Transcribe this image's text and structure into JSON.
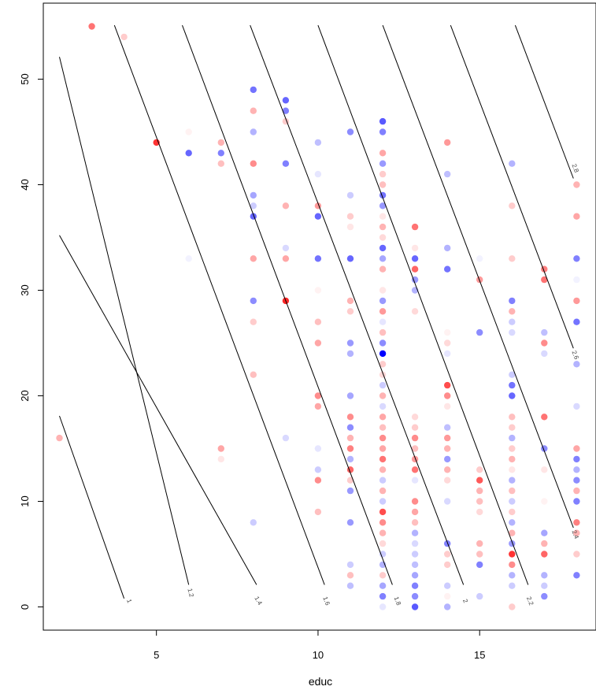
{
  "chart_data": {
    "type": "scatter",
    "title": "",
    "xlabel": "educ",
    "ylabel": "",
    "xlim": [
      1.5,
      18.6
    ],
    "ylim": [
      -2.2,
      57.2
    ],
    "x_ticks": [
      5,
      10,
      15
    ],
    "x_tick_labels": [
      "5",
      "10",
      "15"
    ],
    "y_ticks": [
      0,
      10,
      20,
      30,
      40,
      50
    ],
    "y_tick_labels": [
      "0",
      "10",
      "20",
      "30",
      "40",
      "50"
    ],
    "grid": false,
    "legend": "none",
    "colors": {
      "positive": "#ff0000",
      "negative": "#0000ff",
      "contour": "#000000",
      "frame": "#000000"
    },
    "contour_lines": [
      {
        "label": "1",
        "from": [
          2.0,
          18.1
        ],
        "to": [
          4.0,
          0.8
        ],
        "label_at": [
          4.1,
          0.5
        ]
      },
      {
        "label": "1.2",
        "from": [
          2.0,
          52.1
        ],
        "to": [
          6.0,
          2.1
        ],
        "label_at": [
          6.0,
          1.3
        ]
      },
      {
        "label": "1.4",
        "from": [
          2.0,
          35.2
        ],
        "to": [
          8.1,
          2.1
        ],
        "label_at": [
          8.1,
          0.5
        ]
      },
      {
        "label": "1.6",
        "from": [
          3.7,
          55.1
        ],
        "to": [
          10.2,
          2.1
        ],
        "label_at": [
          10.2,
          0.5
        ]
      },
      {
        "label": "1.8",
        "from": [
          5.8,
          55.1
        ],
        "to": [
          12.3,
          2.1
        ],
        "label_at": [
          12.4,
          0.5
        ]
      },
      {
        "label": "2",
        "from": [
          7.9,
          55.1
        ],
        "to": [
          14.5,
          2.1
        ],
        "label_at": [
          14.5,
          0.5
        ]
      },
      {
        "label": "2.2",
        "from": [
          10.0,
          55.1
        ],
        "to": [
          16.5,
          2.1
        ],
        "label_at": [
          16.5,
          0.5
        ]
      },
      {
        "label": "2.4",
        "from": [
          12.0,
          55.1
        ],
        "to": [
          17.9,
          7.5
        ],
        "label_at": [
          17.9,
          6.8
        ]
      },
      {
        "label": "2.6",
        "from": [
          14.1,
          55.1
        ],
        "to": [
          17.9,
          24.5
        ],
        "label_at": [
          17.9,
          23.8
        ]
      },
      {
        "label": "2.8",
        "from": [
          16.1,
          55.1
        ],
        "to": [
          17.9,
          40.6
        ],
        "label_at": [
          17.9,
          41.5
        ]
      }
    ],
    "points": [
      {
        "x": 3,
        "y": 55,
        "r": 0.55
      },
      {
        "x": 4,
        "y": 54,
        "r": 0.2
      },
      {
        "x": 2,
        "y": 16,
        "r": 0.3
      },
      {
        "x": 5,
        "y": 44,
        "r": 0.8
      },
      {
        "x": 6,
        "y": 45,
        "r": 0.05
      },
      {
        "x": 6,
        "y": 43,
        "r": -0.6
      },
      {
        "x": 6,
        "y": 33,
        "r": -0.05
      },
      {
        "x": 7,
        "y": 44,
        "r": 0.3
      },
      {
        "x": 7,
        "y": 43,
        "r": -0.5
      },
      {
        "x": 7,
        "y": 42,
        "r": 0.25
      },
      {
        "x": 7,
        "y": 15,
        "r": 0.35
      },
      {
        "x": 7,
        "y": 14,
        "r": 0.1
      },
      {
        "x": 8,
        "y": 49,
        "r": -0.55
      },
      {
        "x": 8,
        "y": 47,
        "r": 0.3
      },
      {
        "x": 8,
        "y": 45,
        "r": -0.3
      },
      {
        "x": 8,
        "y": 42,
        "r": 0.45
      },
      {
        "x": 8,
        "y": 39,
        "r": -0.35
      },
      {
        "x": 8,
        "y": 38,
        "r": -0.2
      },
      {
        "x": 8,
        "y": 37,
        "r": -0.6
      },
      {
        "x": 8,
        "y": 33,
        "r": 0.35
      },
      {
        "x": 8,
        "y": 29,
        "r": -0.45
      },
      {
        "x": 8,
        "y": 27,
        "r": 0.2
      },
      {
        "x": 8,
        "y": 22,
        "r": 0.25
      },
      {
        "x": 8,
        "y": 8,
        "r": -0.2
      },
      {
        "x": 9,
        "y": 48,
        "r": -0.6
      },
      {
        "x": 9,
        "y": 47,
        "r": -0.5
      },
      {
        "x": 9,
        "y": 46,
        "r": 0.2
      },
      {
        "x": 9,
        "y": 42,
        "r": -0.5
      },
      {
        "x": 9,
        "y": 38,
        "r": 0.3
      },
      {
        "x": 9,
        "y": 34,
        "r": -0.15
      },
      {
        "x": 9,
        "y": 33,
        "r": 0.35
      },
      {
        "x": 9,
        "y": 29,
        "r": 0.85
      },
      {
        "x": 9,
        "y": 16,
        "r": -0.15
      },
      {
        "x": 10,
        "y": 44,
        "r": -0.25
      },
      {
        "x": 10,
        "y": 41,
        "r": -0.1
      },
      {
        "x": 10,
        "y": 38,
        "r": 0.4
      },
      {
        "x": 10,
        "y": 37,
        "r": -0.6
      },
      {
        "x": 10,
        "y": 33,
        "r": -0.55
      },
      {
        "x": 10,
        "y": 30,
        "r": 0.05
      },
      {
        "x": 10,
        "y": 27,
        "r": 0.25
      },
      {
        "x": 10,
        "y": 25,
        "r": 0.35
      },
      {
        "x": 10,
        "y": 20,
        "r": 0.45
      },
      {
        "x": 10,
        "y": 19,
        "r": 0.35
      },
      {
        "x": 10,
        "y": 15,
        "r": -0.1
      },
      {
        "x": 10,
        "y": 13,
        "r": -0.2
      },
      {
        "x": 10,
        "y": 12,
        "r": 0.45
      },
      {
        "x": 10,
        "y": 9,
        "r": 0.25
      },
      {
        "x": 11,
        "y": 45,
        "r": -0.45
      },
      {
        "x": 11,
        "y": 39,
        "r": -0.2
      },
      {
        "x": 11,
        "y": 37,
        "r": 0.2
      },
      {
        "x": 11,
        "y": 36,
        "r": 0.1
      },
      {
        "x": 11,
        "y": 33,
        "r": -0.6
      },
      {
        "x": 11,
        "y": 29,
        "r": 0.3
      },
      {
        "x": 11,
        "y": 28,
        "r": 0.2
      },
      {
        "x": 11,
        "y": 25,
        "r": -0.4
      },
      {
        "x": 11,
        "y": 24,
        "r": -0.3
      },
      {
        "x": 11,
        "y": 20,
        "r": -0.35
      },
      {
        "x": 11,
        "y": 18,
        "r": 0.45
      },
      {
        "x": 11,
        "y": 17,
        "r": -0.45
      },
      {
        "x": 11,
        "y": 16,
        "r": 0.3
      },
      {
        "x": 11,
        "y": 15,
        "r": 0.5
      },
      {
        "x": 11,
        "y": 14,
        "r": -0.3
      },
      {
        "x": 11,
        "y": 13,
        "r": 0.6
      },
      {
        "x": 11,
        "y": 12,
        "r": 0.2
      },
      {
        "x": 11,
        "y": 11,
        "r": -0.4
      },
      {
        "x": 11,
        "y": 8,
        "r": -0.4
      },
      {
        "x": 11,
        "y": 4,
        "r": -0.2
      },
      {
        "x": 11,
        "y": 3,
        "r": 0.25
      },
      {
        "x": 11,
        "y": 2,
        "r": -0.25
      },
      {
        "x": 12,
        "y": 46,
        "r": -0.65
      },
      {
        "x": 12,
        "y": 45,
        "r": -0.5
      },
      {
        "x": 12,
        "y": 43,
        "r": 0.35
      },
      {
        "x": 12,
        "y": 42,
        "r": -0.4
      },
      {
        "x": 12,
        "y": 41,
        "r": 0.2
      },
      {
        "x": 12,
        "y": 40,
        "r": 0.25
      },
      {
        "x": 12,
        "y": 39,
        "r": -0.55
      },
      {
        "x": 12,
        "y": 38,
        "r": -0.4
      },
      {
        "x": 12,
        "y": 37,
        "r": 0.1
      },
      {
        "x": 12,
        "y": 36,
        "r": 0.3
      },
      {
        "x": 12,
        "y": 35,
        "r": 0.15
      },
      {
        "x": 12,
        "y": 34,
        "r": -0.6
      },
      {
        "x": 12,
        "y": 33,
        "r": -0.35
      },
      {
        "x": 12,
        "y": 32,
        "r": 0.3
      },
      {
        "x": 12,
        "y": 30,
        "r": 0.1
      },
      {
        "x": 12,
        "y": 29,
        "r": -0.4
      },
      {
        "x": 12,
        "y": 28,
        "r": 0.4
      },
      {
        "x": 12,
        "y": 27,
        "r": -0.1
      },
      {
        "x": 12,
        "y": 26,
        "r": 0.25
      },
      {
        "x": 12,
        "y": 25,
        "r": -0.45
      },
      {
        "x": 12,
        "y": 24,
        "r": -1.0
      },
      {
        "x": 12,
        "y": 23,
        "r": 0.2
      },
      {
        "x": 12,
        "y": 22,
        "r": 0.15
      },
      {
        "x": 12,
        "y": 21,
        "r": -0.2
      },
      {
        "x": 12,
        "y": 20,
        "r": 0.3
      },
      {
        "x": 12,
        "y": 19,
        "r": -0.15
      },
      {
        "x": 12,
        "y": 18,
        "r": 0.35
      },
      {
        "x": 12,
        "y": 17,
        "r": 0.25
      },
      {
        "x": 12,
        "y": 16,
        "r": 0.45
      },
      {
        "x": 12,
        "y": 15,
        "r": 0.35
      },
      {
        "x": 12,
        "y": 14,
        "r": 0.55
      },
      {
        "x": 12,
        "y": 13,
        "r": 0.3
      },
      {
        "x": 12,
        "y": 12,
        "r": -0.2
      },
      {
        "x": 12,
        "y": 11,
        "r": 0.3
      },
      {
        "x": 12,
        "y": 10,
        "r": -0.2
      },
      {
        "x": 12,
        "y": 9,
        "r": 0.7
      },
      {
        "x": 12,
        "y": 8,
        "r": 0.45
      },
      {
        "x": 12,
        "y": 7,
        "r": 0.3
      },
      {
        "x": 12,
        "y": 6,
        "r": 0.15
      },
      {
        "x": 12,
        "y": 5,
        "r": -0.2
      },
      {
        "x": 12,
        "y": 4,
        "r": -0.3
      },
      {
        "x": 12,
        "y": 3,
        "r": 0.2
      },
      {
        "x": 12,
        "y": 2,
        "r": -0.35
      },
      {
        "x": 12,
        "y": 1,
        "r": -0.5
      },
      {
        "x": 12,
        "y": 0,
        "r": -0.1
      },
      {
        "x": 13,
        "y": 36,
        "r": 0.55
      },
      {
        "x": 13,
        "y": 34,
        "r": 0.1
      },
      {
        "x": 13,
        "y": 33,
        "r": -0.6
      },
      {
        "x": 13,
        "y": 32,
        "r": 0.6
      },
      {
        "x": 13,
        "y": 31,
        "r": -0.4
      },
      {
        "x": 13,
        "y": 30,
        "r": -0.3
      },
      {
        "x": 13,
        "y": 28,
        "r": 0.15
      },
      {
        "x": 13,
        "y": 18,
        "r": 0.15
      },
      {
        "x": 13,
        "y": 17,
        "r": 0.2
      },
      {
        "x": 13,
        "y": 16,
        "r": 0.45
      },
      {
        "x": 13,
        "y": 15,
        "r": 0.25
      },
      {
        "x": 13,
        "y": 14,
        "r": 0.4
      },
      {
        "x": 13,
        "y": 13,
        "r": 0.55
      },
      {
        "x": 13,
        "y": 12,
        "r": -0.1
      },
      {
        "x": 13,
        "y": 10,
        "r": 0.45
      },
      {
        "x": 13,
        "y": 9,
        "r": 0.35
      },
      {
        "x": 13,
        "y": 8,
        "r": 0.25
      },
      {
        "x": 13,
        "y": 7,
        "r": -0.3
      },
      {
        "x": 13,
        "y": 6,
        "r": -0.15
      },
      {
        "x": 13,
        "y": 5,
        "r": -0.2
      },
      {
        "x": 13,
        "y": 4,
        "r": -0.25
      },
      {
        "x": 13,
        "y": 3,
        "r": -0.35
      },
      {
        "x": 13,
        "y": 2,
        "r": -0.5
      },
      {
        "x": 13,
        "y": 1,
        "r": -0.45
      },
      {
        "x": 13,
        "y": 0,
        "r": -0.65
      },
      {
        "x": 14,
        "y": 44,
        "r": 0.4
      },
      {
        "x": 14,
        "y": 41,
        "r": -0.25
      },
      {
        "x": 14,
        "y": 34,
        "r": -0.3
      },
      {
        "x": 14,
        "y": 32,
        "r": -0.55
      },
      {
        "x": 14,
        "y": 26,
        "r": 0.05
      },
      {
        "x": 14,
        "y": 25,
        "r": 0.15
      },
      {
        "x": 14,
        "y": 24,
        "r": -0.1
      },
      {
        "x": 14,
        "y": 21,
        "r": 0.7
      },
      {
        "x": 14,
        "y": 20,
        "r": 0.45
      },
      {
        "x": 14,
        "y": 19,
        "r": 0.1
      },
      {
        "x": 14,
        "y": 17,
        "r": -0.25
      },
      {
        "x": 14,
        "y": 16,
        "r": 0.4
      },
      {
        "x": 14,
        "y": 15,
        "r": 0.3
      },
      {
        "x": 14,
        "y": 14,
        "r": -0.4
      },
      {
        "x": 14,
        "y": 13,
        "r": 0.3
      },
      {
        "x": 14,
        "y": 12,
        "r": 0.15
      },
      {
        "x": 14,
        "y": 10,
        "r": -0.15
      },
      {
        "x": 14,
        "y": 6,
        "r": -0.5
      },
      {
        "x": 14,
        "y": 5,
        "r": 0.2
      },
      {
        "x": 14,
        "y": 4,
        "r": 0.2
      },
      {
        "x": 14,
        "y": 2,
        "r": -0.2
      },
      {
        "x": 14,
        "y": 1,
        "r": 0.05
      },
      {
        "x": 14,
        "y": 0,
        "r": -0.3
      },
      {
        "x": 15,
        "y": 33,
        "r": -0.05
      },
      {
        "x": 15,
        "y": 31,
        "r": 0.4
      },
      {
        "x": 15,
        "y": 26,
        "r": -0.45
      },
      {
        "x": 15,
        "y": 13,
        "r": 0.2
      },
      {
        "x": 15,
        "y": 12,
        "r": 0.65
      },
      {
        "x": 15,
        "y": 11,
        "r": 0.3
      },
      {
        "x": 15,
        "y": 10,
        "r": 0.25
      },
      {
        "x": 15,
        "y": 9,
        "r": 0.15
      },
      {
        "x": 15,
        "y": 6,
        "r": 0.3
      },
      {
        "x": 15,
        "y": 5,
        "r": 0.25
      },
      {
        "x": 15,
        "y": 4,
        "r": -0.5
      },
      {
        "x": 15,
        "y": 1,
        "r": -0.2
      },
      {
        "x": 16,
        "y": 42,
        "r": -0.3
      },
      {
        "x": 16,
        "y": 38,
        "r": 0.2
      },
      {
        "x": 16,
        "y": 33,
        "r": 0.2
      },
      {
        "x": 16,
        "y": 29,
        "r": -0.5
      },
      {
        "x": 16,
        "y": 28,
        "r": 0.3
      },
      {
        "x": 16,
        "y": 27,
        "r": -0.2
      },
      {
        "x": 16,
        "y": 26,
        "r": -0.15
      },
      {
        "x": 16,
        "y": 22,
        "r": -0.2
      },
      {
        "x": 16,
        "y": 21,
        "r": -0.55
      },
      {
        "x": 16,
        "y": 20,
        "r": -0.6
      },
      {
        "x": 16,
        "y": 18,
        "r": 0.25
      },
      {
        "x": 16,
        "y": 17,
        "r": 0.2
      },
      {
        "x": 16,
        "y": 16,
        "r": -0.3
      },
      {
        "x": 16,
        "y": 15,
        "r": 0.2
      },
      {
        "x": 16,
        "y": 14,
        "r": 0.3
      },
      {
        "x": 16,
        "y": 13,
        "r": 0.1
      },
      {
        "x": 16,
        "y": 12,
        "r": -0.3
      },
      {
        "x": 16,
        "y": 11,
        "r": 0.25
      },
      {
        "x": 16,
        "y": 10,
        "r": -0.2
      },
      {
        "x": 16,
        "y": 9,
        "r": 0.2
      },
      {
        "x": 16,
        "y": 8,
        "r": -0.3
      },
      {
        "x": 16,
        "y": 7,
        "r": 0.3
      },
      {
        "x": 16,
        "y": 6,
        "r": -0.4
      },
      {
        "x": 16,
        "y": 5,
        "r": 0.8
      },
      {
        "x": 16,
        "y": 4,
        "r": 0.45
      },
      {
        "x": 16,
        "y": 3,
        "r": -0.3
      },
      {
        "x": 16,
        "y": 2,
        "r": -0.2
      },
      {
        "x": 16,
        "y": 0,
        "r": 0.2
      },
      {
        "x": 17,
        "y": 32,
        "r": 0.5
      },
      {
        "x": 17,
        "y": 31,
        "r": 0.55
      },
      {
        "x": 17,
        "y": 26,
        "r": -0.25
      },
      {
        "x": 17,
        "y": 25,
        "r": 0.45
      },
      {
        "x": 17,
        "y": 24,
        "r": -0.15
      },
      {
        "x": 17,
        "y": 18,
        "r": 0.55
      },
      {
        "x": 17,
        "y": 15,
        "r": -0.45
      },
      {
        "x": 17,
        "y": 13,
        "r": 0.1
      },
      {
        "x": 17,
        "y": 10,
        "r": 0.05
      },
      {
        "x": 17,
        "y": 7,
        "r": -0.35
      },
      {
        "x": 17,
        "y": 6,
        "r": 0.3
      },
      {
        "x": 17,
        "y": 5,
        "r": 0.6
      },
      {
        "x": 17,
        "y": 3,
        "r": -0.3
      },
      {
        "x": 17,
        "y": 2,
        "r": -0.2
      },
      {
        "x": 17,
        "y": 1,
        "r": -0.45
      },
      {
        "x": 18,
        "y": 40,
        "r": 0.3
      },
      {
        "x": 18,
        "y": 37,
        "r": 0.35
      },
      {
        "x": 18,
        "y": 33,
        "r": -0.5
      },
      {
        "x": 18,
        "y": 31,
        "r": -0.05
      },
      {
        "x": 18,
        "y": 29,
        "r": 0.4
      },
      {
        "x": 18,
        "y": 27,
        "r": -0.55
      },
      {
        "x": 18,
        "y": 23,
        "r": -0.3
      },
      {
        "x": 18,
        "y": 19,
        "r": -0.15
      },
      {
        "x": 18,
        "y": 15,
        "r": 0.35
      },
      {
        "x": 18,
        "y": 14,
        "r": -0.5
      },
      {
        "x": 18,
        "y": 13,
        "r": -0.3
      },
      {
        "x": 18,
        "y": 12,
        "r": -0.45
      },
      {
        "x": 18,
        "y": 11,
        "r": 0.3
      },
      {
        "x": 18,
        "y": 10,
        "r": -0.5
      },
      {
        "x": 18,
        "y": 8,
        "r": 0.5
      },
      {
        "x": 18,
        "y": 7,
        "r": 0.3
      },
      {
        "x": 18,
        "y": 5,
        "r": 0.2
      },
      {
        "x": 18,
        "y": 3,
        "r": -0.5
      }
    ]
  }
}
